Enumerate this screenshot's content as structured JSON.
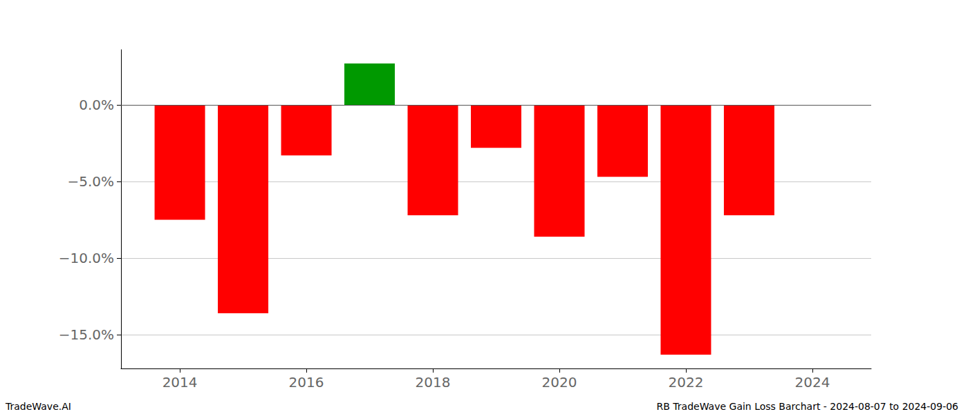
{
  "chart_data": {
    "type": "bar",
    "x": [
      2014,
      2015,
      2016,
      2017,
      2018,
      2019,
      2020,
      2021,
      2022,
      2023
    ],
    "values": [
      -7.5,
      -13.6,
      -3.3,
      2.7,
      -7.2,
      -2.8,
      -8.6,
      -4.7,
      -16.3,
      -7.2
    ],
    "colors": [
      "#ff0000",
      "#ff0000",
      "#ff0000",
      "#009900",
      "#ff0000",
      "#ff0000",
      "#ff0000",
      "#ff0000",
      "#ff0000",
      "#ff0000"
    ],
    "xlim": [
      2013.07,
      2024.93
    ],
    "xticks": [
      2014,
      2016,
      2018,
      2020,
      2022,
      2024
    ],
    "ylim": [
      -17.2,
      3.6
    ],
    "yticks": [
      {
        "value": -15,
        "label": "−15.0%"
      },
      {
        "value": -10,
        "label": "−10.0%"
      },
      {
        "value": -5,
        "label": "−5.0%"
      },
      {
        "value": 0,
        "label": "0.0%"
      }
    ],
    "grid": true,
    "annotations": [
      "TradeWave.AI",
      "RB TradeWave Gain Loss Barchart - 2024-08-07 to 2024-09-06"
    ]
  }
}
